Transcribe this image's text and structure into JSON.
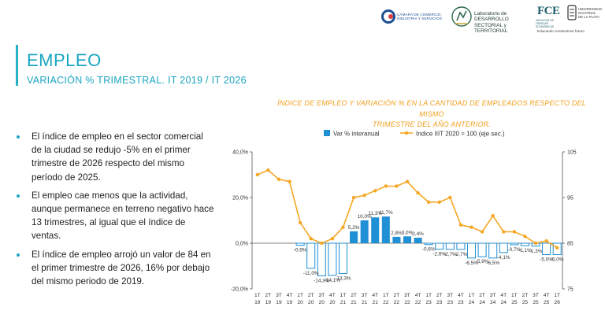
{
  "logos": {
    "ccis_text_line1": "CÁMARA DE COMERCIO,",
    "ccis_text_line2": "INDUSTRIA Y SERVICIOS",
    "lab_text_line1": "Laboratorio de DESARROLLO",
    "lab_text_line2": "SECTORIAL y TERRITORIAL",
    "fce_logo": "FCE",
    "fce_sub": "FACULTAD DE CIENCIAS ECONÓMICAS",
    "unlp_line1": "UNIVERSIDAD",
    "unlp_line2": "NACIONAL",
    "unlp_line3": "DE LA PLATA",
    "tagline": "Educando construimos futuro"
  },
  "header": {
    "title": "EMPLEO",
    "subtitle": "VARIACIÓN % TRIMESTRAL. IT 2019 / IT 2026"
  },
  "chart_caption": {
    "line1": "ÍNDICE DE EMPLEO Y VARIACIÓN % EN LA CANTIDAD DE EMPLEADOS RESPECTO DEL MISMO",
    "line2": "TRIMESTRE DEL AÑO ANTERIOR."
  },
  "bullets": [
    "El índice de empleo en el sector comercial de la ciudad se redujo -5% en el primer trimestre de 2026 respecto del mismo período de 2025.",
    "El empleo cae menos que la actividad, aunque permanece en terreno negativo hace 13 trimestres, al igual que el índice de ventas.",
    "El índice de empleo arrojó un valor de 84 en el primer trimestre de 2026, 16% por debajo del mismo periodo de 2019."
  ],
  "colors": {
    "accent": "#1aa6c1",
    "caption": "#f0a020",
    "bar": "#1f8fd6",
    "line": "#f5a623",
    "text": "#222222"
  },
  "chart_data": {
    "type": "bar+line",
    "categories": [
      "1T 19",
      "2T 19",
      "3T 19",
      "4T 19",
      "1T 20",
      "2T 20",
      "3T 20",
      "4T 20",
      "1T 21",
      "2T 21",
      "3T 21",
      "4T 21",
      "1T 22",
      "2T 22",
      "3T 22",
      "4T 22",
      "1T 23",
      "2T 23",
      "3T 23",
      "4T 23",
      "1T 24",
      "2T 24",
      "3T 24",
      "4T 24",
      "1T 25",
      "2T 25",
      "3T 25",
      "4T 25",
      "1T 26"
    ],
    "legend": [
      "Var % interanual",
      "Indice IIIT 2020 = 100 (eje sec.)"
    ],
    "legend_position": "top",
    "bars": {
      "name": "Var % interanual",
      "values": [
        null,
        null,
        null,
        null,
        -0.9,
        -11.0,
        -14.3,
        -14.1,
        -13.3,
        5.2,
        10.0,
        11.3,
        11.7,
        2.8,
        3.0,
        2.4,
        -0.6,
        -2.6,
        -2.7,
        -2.7,
        -6.5,
        -5.9,
        -6.5,
        -4.1,
        -0.7,
        -1.1,
        -1.3,
        -5.0,
        -5.0
      ],
      "labels": [
        "",
        "",
        "",
        "",
        "-0,9%",
        "-11,0%",
        "-14,3%",
        "-14,1%",
        "-13,3%",
        "5,2%",
        "10,0%",
        "11,3%",
        "11,7%",
        "2,8%",
        "3,0%",
        "2,4%",
        "-0,6%",
        "-2,6%",
        "-2,7%",
        "-2,7%",
        "-6,5%",
        "-5,9%",
        "-6,5%",
        "-4,1%",
        "-0,7%",
        "-1,1%",
        "-1,3%",
        "-5,0%",
        "-5,0%"
      ]
    },
    "line": {
      "name": "Indice IIIT 2020 = 100 (eje sec.)",
      "axis": "secondary",
      "values": [
        100,
        101,
        99,
        98.5,
        89.5,
        86,
        85,
        86,
        88.5,
        95,
        95.5,
        96.5,
        97.5,
        97.5,
        98.5,
        96,
        94,
        94,
        95,
        89,
        88.5,
        87.5,
        91,
        87.5,
        87.5,
        86.5,
        85,
        85.5,
        84
      ]
    },
    "y_left": {
      "min": -20,
      "max": 40,
      "ticks": [
        "-20,0%",
        "0,0%",
        "20,0%",
        "40,0%"
      ],
      "tick_values": [
        -20,
        0,
        20,
        40
      ]
    },
    "y_right": {
      "min": 75,
      "max": 105,
      "ticks": [
        "75",
        "85",
        "95",
        "105"
      ],
      "tick_values": [
        75,
        85,
        95,
        105
      ]
    },
    "grid": false
  }
}
